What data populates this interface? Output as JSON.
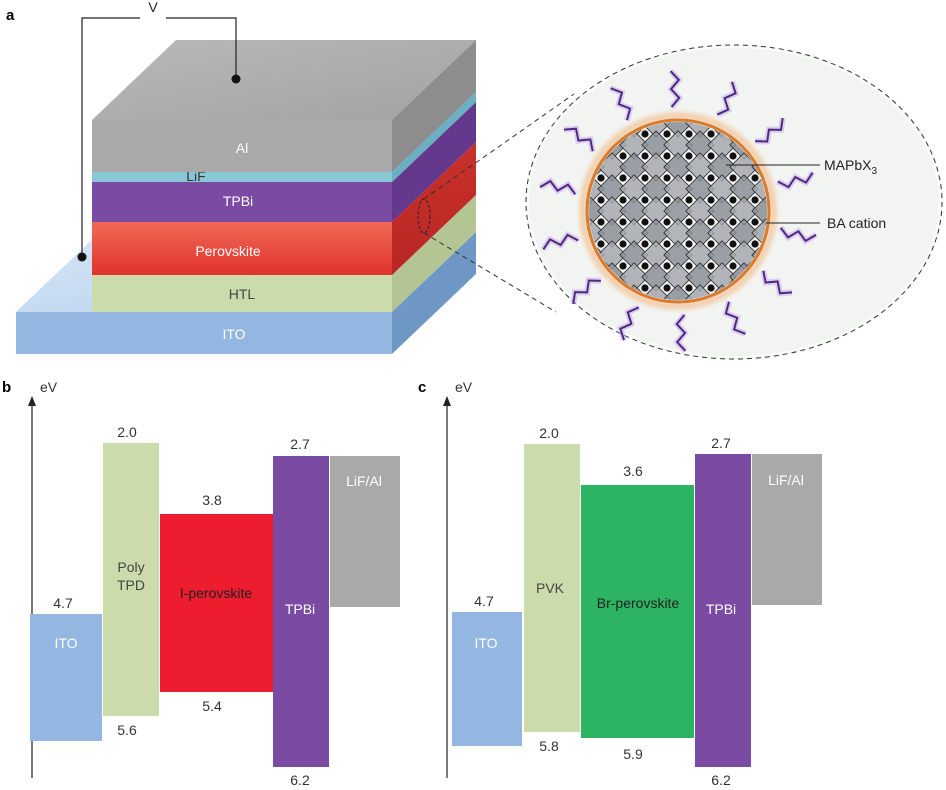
{
  "panels": {
    "a": "a",
    "b": "b",
    "c": "c"
  },
  "device": {
    "voltage": "V",
    "layers": [
      {
        "key": "al",
        "label": "Al",
        "color": "#a9a9a9"
      },
      {
        "key": "lif",
        "label": "LiF",
        "color": "#88c7d6"
      },
      {
        "key": "tpbi",
        "label": "TPBi",
        "color": "#7b4aa3"
      },
      {
        "key": "perovskite",
        "label": "Perovskite",
        "color": "#e8453c"
      },
      {
        "key": "htl",
        "label": "HTL",
        "color": "#ccdbab"
      },
      {
        "key": "ito",
        "label": "ITO",
        "color": "#93b7e0"
      }
    ]
  },
  "nanocrystal": {
    "core_label_main": "MAPbX",
    "core_label_sub": "3",
    "ligand_label": "BA cation"
  },
  "diagram_b": {
    "axis_label": "eV",
    "blocks": [
      {
        "key": "ito",
        "label": "ITO",
        "top_value": "4.7",
        "bottom_value": "",
        "color": "#93b7e0"
      },
      {
        "key": "polytpd",
        "label_lines": [
          "Poly",
          "TPD"
        ],
        "top_value": "2.0",
        "bottom_value": "5.6",
        "color": "#ccdbab"
      },
      {
        "key": "iperovskite",
        "label": "I-perovskite",
        "top_value": "3.8",
        "bottom_value": "5.4",
        "color": "#ed1c2e"
      },
      {
        "key": "tpbi",
        "label": "TPBi",
        "top_value": "2.7",
        "bottom_value": "6.2",
        "color": "#7b4aa3"
      },
      {
        "key": "lifal",
        "label": "LiF/Al",
        "top_value": "",
        "bottom_value": "",
        "color": "#a9a9a9"
      }
    ]
  },
  "diagram_c": {
    "axis_label": "eV",
    "blocks": [
      {
        "key": "ito",
        "label": "ITO",
        "top_value": "4.7",
        "bottom_value": "",
        "color": "#93b7e0"
      },
      {
        "key": "pvk",
        "label": "PVK",
        "top_value": "2.0",
        "bottom_value": "5.8",
        "color": "#ccdbab"
      },
      {
        "key": "brperovskite",
        "label": "Br-perovskite",
        "top_value": "3.6",
        "bottom_value": "5.9",
        "color": "#2db463"
      },
      {
        "key": "tpbi",
        "label": "TPBi",
        "top_value": "2.7",
        "bottom_value": "6.2",
        "color": "#7b4aa3"
      },
      {
        "key": "lifal",
        "label": "LiF/Al",
        "top_value": "",
        "bottom_value": "",
        "color": "#a9a9a9"
      }
    ]
  }
}
